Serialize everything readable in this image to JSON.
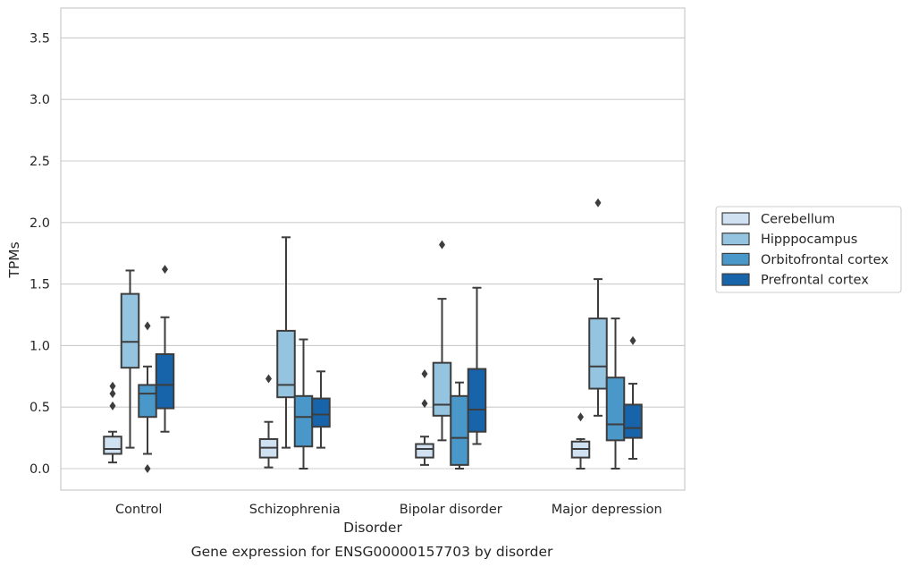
{
  "chart_data": {
    "type": "box",
    "title": "",
    "caption": "Gene expression for ENSG00000157703 by disorder",
    "xlabel": "Disorder",
    "ylabel": "TPMs",
    "ylim": [
      -0.17,
      3.77
    ],
    "yticks": [
      0.0,
      0.5,
      1.0,
      1.5,
      2.0,
      2.5,
      3.0,
      3.5
    ],
    "ytick_labels": [
      "0.0",
      "0.5",
      "1.0",
      "1.5",
      "2.0",
      "2.5",
      "3.0",
      "3.5"
    ],
    "grid": "horizontal",
    "legend_position": "outside-right",
    "categories": [
      "Control",
      "Schizophrenia",
      "Bipolar disorder",
      "Major depression"
    ],
    "series": [
      {
        "name": "Cerebellum",
        "color": "#d0e1f2",
        "boxes": [
          {
            "whislo": 0.05,
            "q1": 0.12,
            "med": 0.16,
            "q3": 0.26,
            "whishi": 0.3,
            "fliers": [
              0.51,
              0.61,
              0.67
            ]
          },
          {
            "whislo": 0.01,
            "q1": 0.09,
            "med": 0.17,
            "q3": 0.24,
            "whishi": 0.38,
            "fliers": [
              0.73
            ]
          },
          {
            "whislo": 0.03,
            "q1": 0.09,
            "med": 0.16,
            "q3": 0.2,
            "whishi": 0.26,
            "fliers": [
              0.53,
              0.77
            ]
          },
          {
            "whislo": 0.0,
            "q1": 0.09,
            "med": 0.16,
            "q3": 0.22,
            "whishi": 0.24,
            "fliers": [
              0.42
            ]
          }
        ]
      },
      {
        "name": "Hipppocampus",
        "color": "#94c4df",
        "boxes": [
          {
            "whislo": 0.17,
            "q1": 0.82,
            "med": 1.03,
            "q3": 1.42,
            "whishi": 1.61,
            "fliers": []
          },
          {
            "whislo": 0.17,
            "q1": 0.58,
            "med": 0.68,
            "q3": 1.12,
            "whishi": 1.88,
            "fliers": []
          },
          {
            "whislo": 0.23,
            "q1": 0.43,
            "med": 0.52,
            "q3": 0.86,
            "whishi": 1.38,
            "fliers": [
              1.82
            ]
          },
          {
            "whislo": 0.43,
            "q1": 0.65,
            "med": 0.83,
            "q3": 1.22,
            "whishi": 1.54,
            "fliers": [
              2.16
            ]
          }
        ]
      },
      {
        "name": "Orbitofrontal cortex",
        "color": "#4a98c9",
        "boxes": [
          {
            "whislo": 0.12,
            "q1": 0.42,
            "med": 0.61,
            "q3": 0.68,
            "whishi": 0.83,
            "fliers": [
              0.0,
              1.16
            ]
          },
          {
            "whislo": 0.0,
            "q1": 0.18,
            "med": 0.42,
            "q3": 0.59,
            "whishi": 1.05,
            "fliers": []
          },
          {
            "whislo": 0.0,
            "q1": 0.03,
            "med": 0.25,
            "q3": 0.59,
            "whishi": 0.7,
            "fliers": []
          },
          {
            "whislo": 0.0,
            "q1": 0.23,
            "med": 0.36,
            "q3": 0.74,
            "whishi": 1.22,
            "fliers": []
          }
        ]
      },
      {
        "name": "Prefrontal cortex",
        "color": "#1764ab",
        "boxes": [
          {
            "whislo": 0.3,
            "q1": 0.49,
            "med": 0.68,
            "q3": 0.93,
            "whishi": 1.23,
            "fliers": [
              1.62
            ]
          },
          {
            "whislo": 0.17,
            "q1": 0.34,
            "med": 0.44,
            "q3": 0.57,
            "whishi": 0.79,
            "fliers": []
          },
          {
            "whislo": 0.2,
            "q1": 0.3,
            "med": 0.48,
            "q3": 0.81,
            "whishi": 1.47,
            "fliers": []
          },
          {
            "whislo": 0.08,
            "q1": 0.25,
            "med": 0.33,
            "q3": 0.52,
            "whishi": 0.69,
            "fliers": [
              1.04
            ]
          }
        ]
      }
    ]
  }
}
